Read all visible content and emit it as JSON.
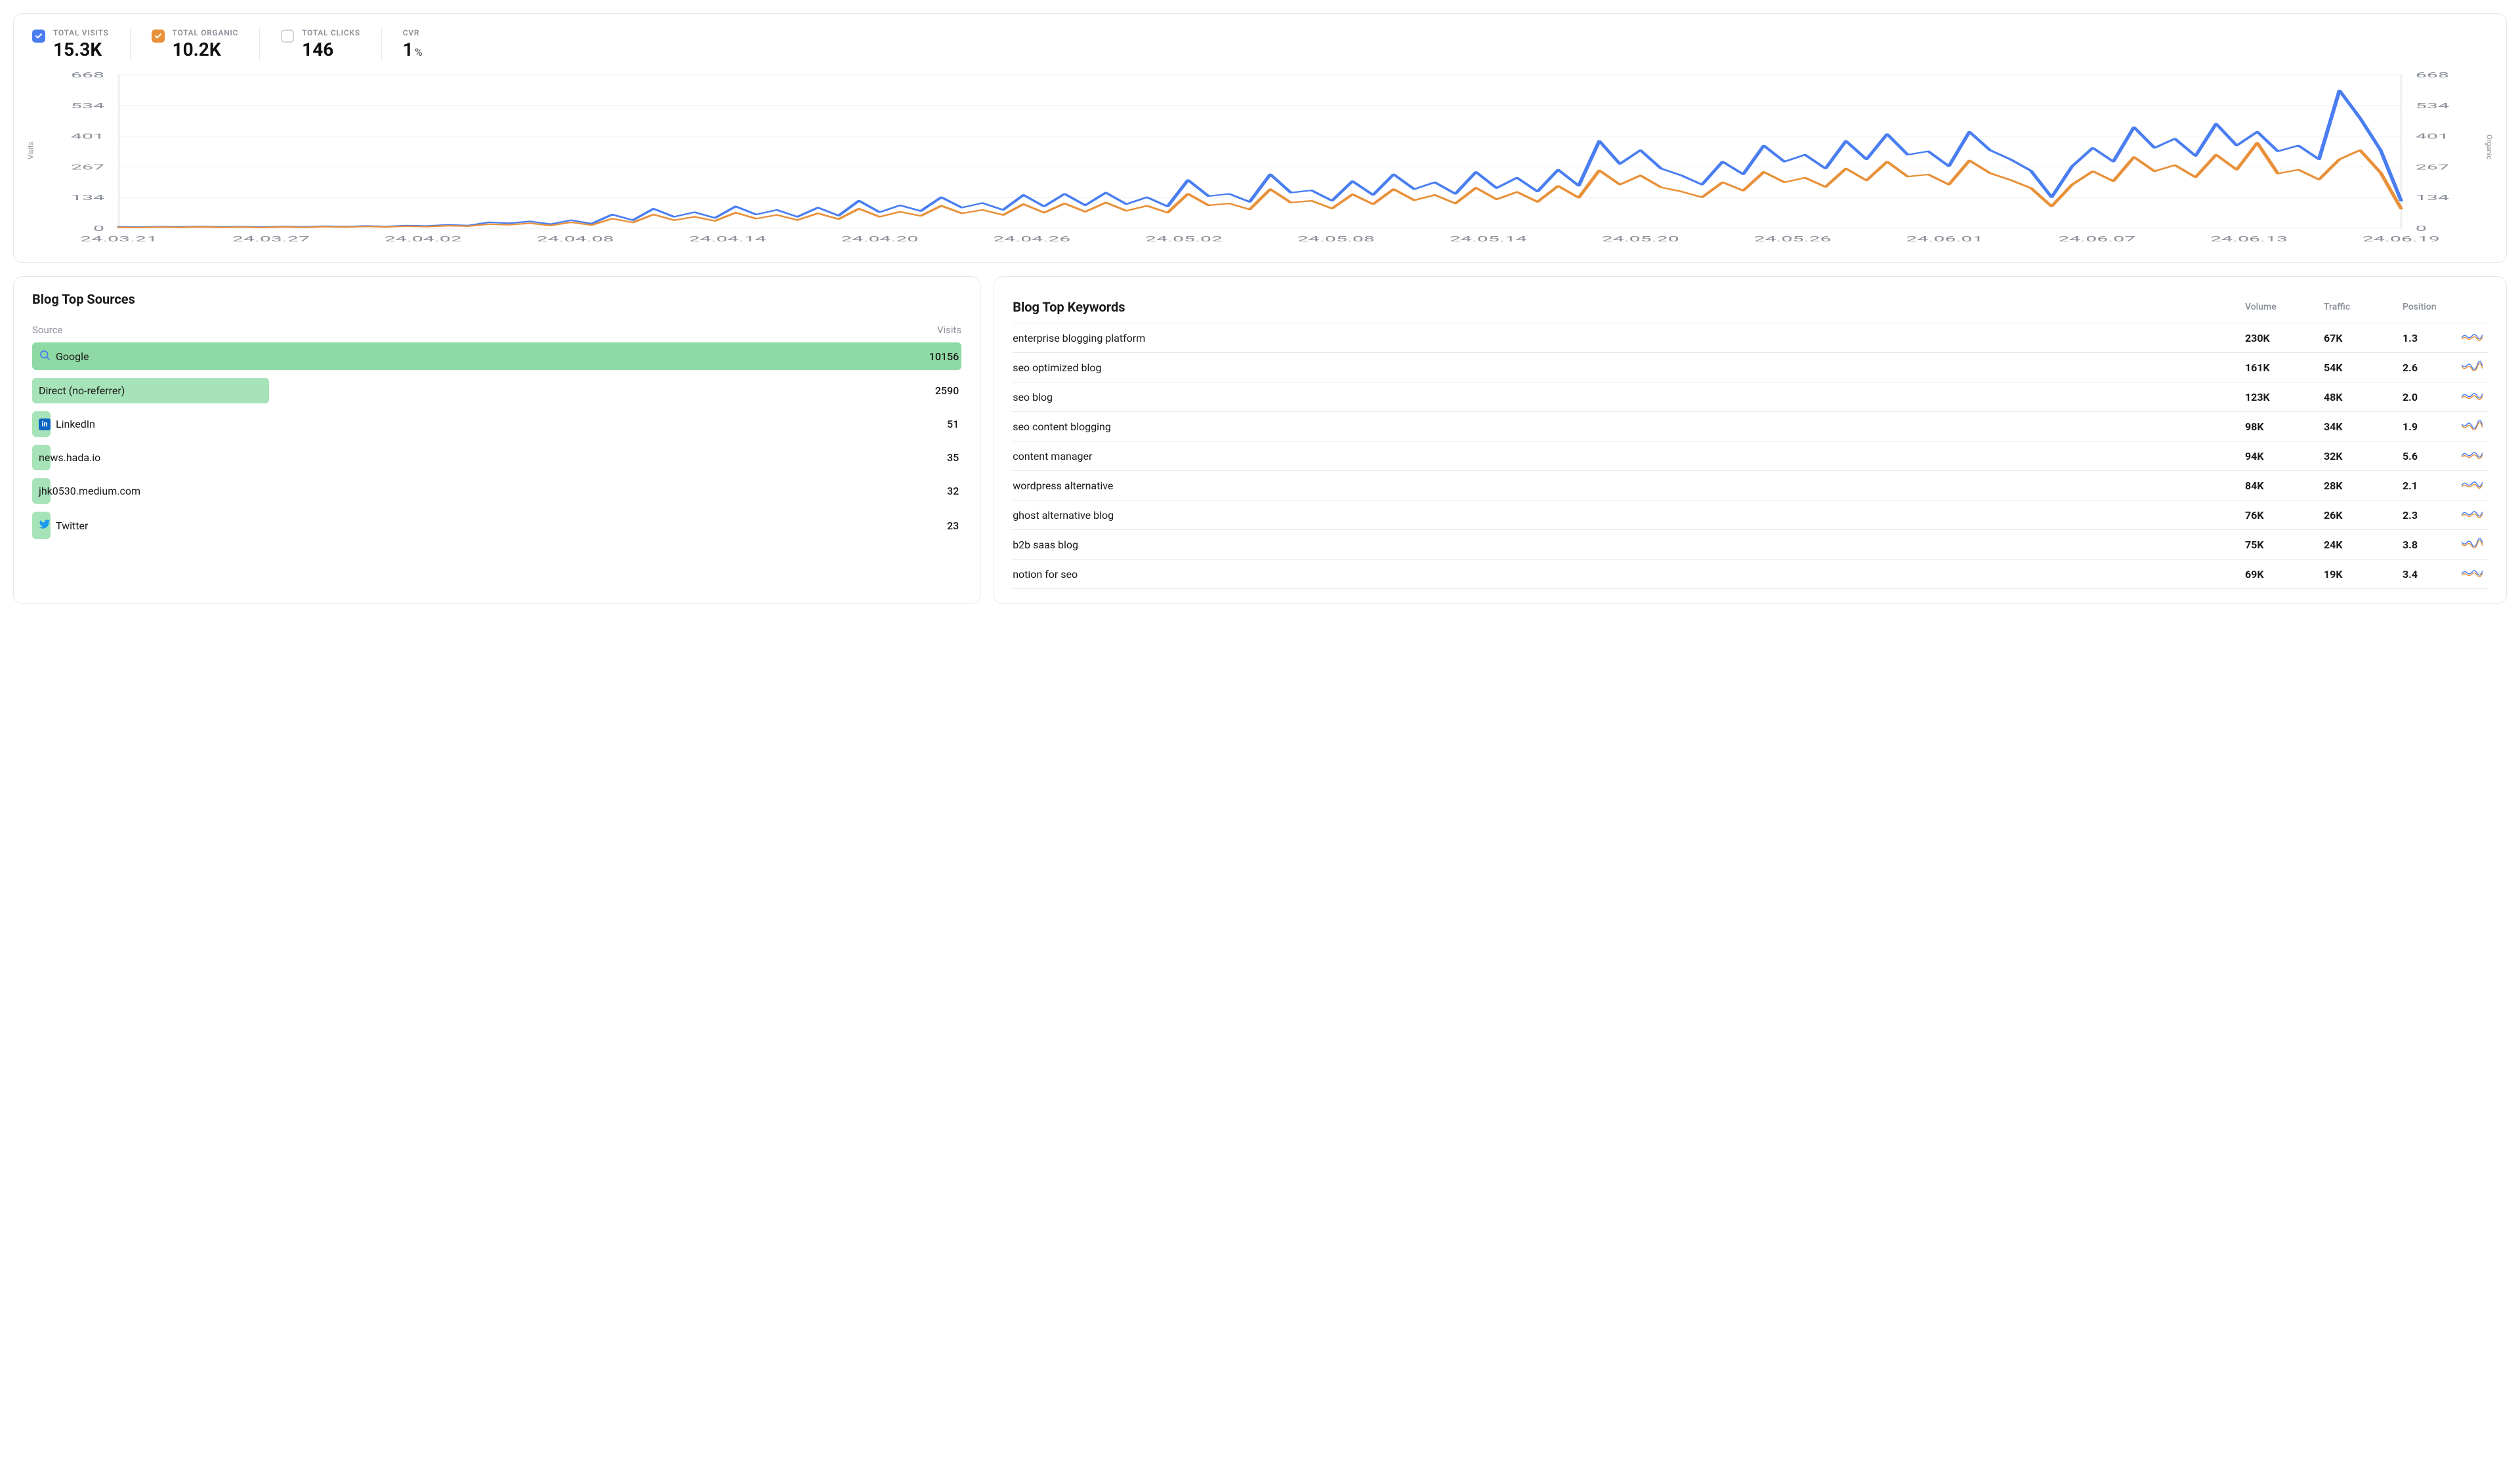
{
  "colors": {
    "visits_line": "#4a7ef0",
    "organic_line": "#e8913a",
    "clicks_line": "#9ca3af",
    "grid": "#eceef0",
    "border": "#e5e7eb",
    "text_muted": "#8a8f98",
    "text": "#1a1a1a",
    "green_bar": "#a7e3b8",
    "green_bar_dark": "#8fd9a4",
    "linkedin": "#0a66c2",
    "twitter": "#1d9bf0",
    "background": "#ffffff"
  },
  "metrics": [
    {
      "key": "visits",
      "label": "TOTAL VISITS",
      "value": "15.3K",
      "checked": true,
      "color": "#4a7ef0"
    },
    {
      "key": "organic",
      "label": "TOTAL ORGANIC",
      "value": "10.2K",
      "checked": true,
      "color": "#e8913a"
    },
    {
      "key": "clicks",
      "label": "TOTAL CLICKS",
      "value": "146",
      "checked": false,
      "color": "#d1d5db"
    },
    {
      "key": "cvr",
      "label": "CVR",
      "value": "1",
      "unit": "%",
      "nocheck": true
    }
  ],
  "chart": {
    "type": "line",
    "left_axis_label": "Visits",
    "right_axis_label": "Organic",
    "ylim": [
      0,
      668
    ],
    "yticks": [
      0,
      134,
      267,
      401,
      534,
      668
    ],
    "tick_fontsize": 11,
    "xlabels": [
      "24.03.21",
      "24.03.27",
      "24.04.02",
      "24.04.08",
      "24.04.14",
      "24.04.20",
      "24.04.26",
      "24.05.02",
      "24.05.08",
      "24.05.14",
      "24.05.20",
      "24.05.26",
      "24.06.01",
      "24.06.07",
      "24.06.13",
      "24.06.19"
    ],
    "line_width": 2.2,
    "grid_color": "#eceef0",
    "series": {
      "visits": {
        "color": "#4a7ef0",
        "values": [
          6,
          5,
          7,
          6,
          8,
          6,
          7,
          5,
          8,
          6,
          9,
          7,
          10,
          8,
          12,
          10,
          15,
          12,
          26,
          22,
          30,
          18,
          35,
          20,
          60,
          35,
          85,
          50,
          70,
          45,
          95,
          60,
          80,
          50,
          90,
          55,
          120,
          70,
          100,
          75,
          135,
          90,
          110,
          80,
          145,
          95,
          150,
          100,
          155,
          105,
          135,
          95,
          210,
          140,
          150,
          115,
          235,
          155,
          165,
          120,
          205,
          145,
          235,
          170,
          200,
          150,
          245,
          175,
          220,
          160,
          255,
          185,
          380,
          280,
          340,
          260,
          230,
          190,
          290,
          235,
          360,
          290,
          320,
          260,
          380,
          300,
          410,
          320,
          335,
          270,
          420,
          340,
          300,
          250,
          135,
          270,
          350,
          290,
          440,
          350,
          390,
          315,
          455,
          360,
          420,
          335,
          360,
          300,
          600,
          480,
          340,
          120
        ]
      },
      "organic": {
        "color": "#e8913a",
        "values": [
          4,
          3,
          5,
          4,
          6,
          4,
          5,
          3,
          6,
          4,
          7,
          5,
          8,
          6,
          9,
          7,
          11,
          9,
          18,
          15,
          22,
          12,
          26,
          14,
          42,
          25,
          60,
          35,
          50,
          32,
          68,
          42,
          58,
          36,
          65,
          40,
          85,
          50,
          72,
          54,
          98,
          65,
          80,
          58,
          105,
          68,
          108,
          72,
          112,
          76,
          98,
          68,
          150,
          100,
          108,
          82,
          170,
          112,
          120,
          86,
          148,
          105,
          170,
          122,
          145,
          108,
          176,
          126,
          158,
          115,
          184,
          133,
          252,
          190,
          230,
          178,
          160,
          135,
          200,
          164,
          245,
          200,
          220,
          180,
          260,
          208,
          290,
          225,
          234,
          190,
          295,
          240,
          210,
          175,
          95,
          190,
          248,
          205,
          310,
          248,
          275,
          222,
          320,
          255,
          372,
          238,
          255,
          212,
          300,
          340,
          242,
          85
        ]
      }
    }
  },
  "sources": {
    "title": "Blog Top Sources",
    "col_source": "Source",
    "col_visits": "Visits",
    "max_visits": 10156,
    "rows": [
      {
        "name": "Google",
        "visits": 10156,
        "icon": "search",
        "icon_color": "#4a7ef0"
      },
      {
        "name": "Direct (no-referrer)",
        "visits": 2590
      },
      {
        "name": "LinkedIn",
        "visits": 51,
        "icon": "linkedin",
        "icon_color": "#0a66c2"
      },
      {
        "name": "news.hada.io",
        "visits": 35
      },
      {
        "name": "jhk0530.medium.com",
        "visits": 32
      },
      {
        "name": "Twitter",
        "visits": 23,
        "icon": "twitter",
        "icon_color": "#1d9bf0"
      }
    ]
  },
  "keywords": {
    "title": "Blog Top Keywords",
    "cols": {
      "volume": "Volume",
      "traffic": "Traffic",
      "position": "Position"
    },
    "rows": [
      {
        "name": "enterprise blogging platform",
        "volume": "230K",
        "traffic": "67K",
        "position": "1.3",
        "spark_variant": 0
      },
      {
        "name": "seo optimized blog",
        "volume": "161K",
        "traffic": "54K",
        "position": "2.6",
        "spark_variant": 1
      },
      {
        "name": "seo blog",
        "volume": "123K",
        "traffic": "48K",
        "position": "2.0",
        "spark_variant": 0
      },
      {
        "name": "seo content blogging",
        "volume": "98K",
        "traffic": "34K",
        "position": "1.9",
        "spark_variant": 1
      },
      {
        "name": "content manager",
        "volume": "94K",
        "traffic": "32K",
        "position": "5.6",
        "spark_variant": 0
      },
      {
        "name": "wordpress alternative",
        "volume": "84K",
        "traffic": "28K",
        "position": "2.1",
        "spark_variant": 0
      },
      {
        "name": "ghost alternative blog",
        "volume": "76K",
        "traffic": "26K",
        "position": "2.3",
        "spark_variant": 0
      },
      {
        "name": "b2b saas blog",
        "volume": "75K",
        "traffic": "24K",
        "position": "3.8",
        "spark_variant": 1
      },
      {
        "name": "notion for seo",
        "volume": "69K",
        "traffic": "19K",
        "position": "3.4",
        "spark_variant": 0
      }
    ],
    "sparkline_colors": {
      "blue": "#4a7ef0",
      "orange": "#e8913a"
    }
  }
}
